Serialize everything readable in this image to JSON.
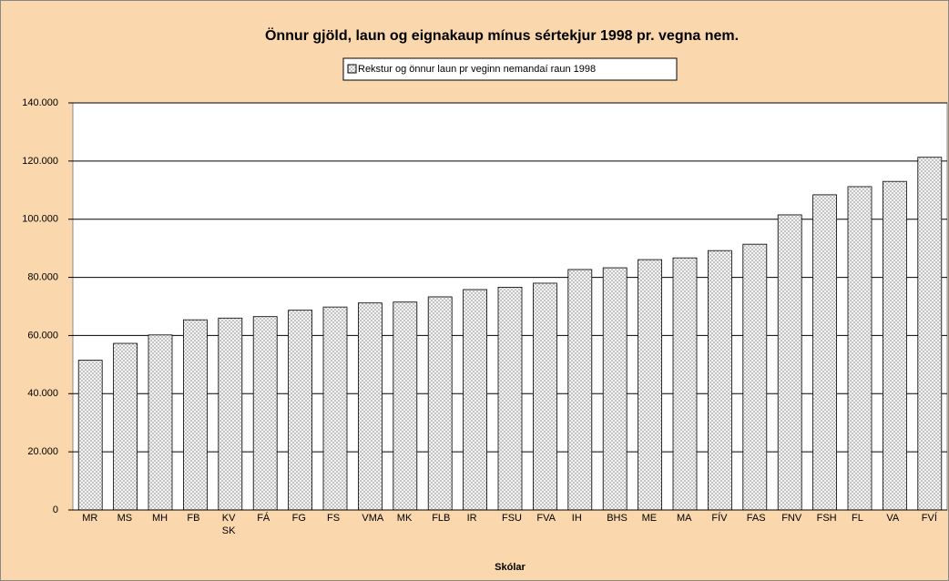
{
  "chart_data": {
    "type": "bar",
    "title": "Önnur gjöld, laun og eignakaup mínus sértekjur 1998 pr. vegna nem.",
    "x_label": "Skólar",
    "categories": [
      "MR",
      "MS",
      "MH",
      "FB",
      "KVSK",
      "FÁ",
      "FG",
      "FS",
      "VMA",
      "MK",
      "FLB",
      "IR",
      "FSU",
      "FVA",
      "IH",
      "BHS",
      "ME",
      "MA",
      "FÍV",
      "FAS",
      "FNV",
      "FSH",
      "FL",
      "VA",
      "FVÍ"
    ],
    "series": [
      {
        "name": "Rekstur og önnur laun pr veginn nemandaí raun 1998",
        "color": "#b8b8b8",
        "values": [
          51500,
          57300,
          60200,
          65400,
          66000,
          66500,
          68700,
          69800,
          71200,
          71500,
          73300,
          75800,
          76600,
          78000,
          82700,
          83300,
          86100,
          86700,
          89200,
          91400,
          101500,
          108400,
          111200,
          113000,
          121300
        ]
      }
    ],
    "ylim": [
      0,
      140000
    ],
    "yticks": [
      0,
      {
        "value": 20000,
        "label": "20.000"
      },
      {
        "value": 40000,
        "label": "40.000"
      },
      {
        "value": 60000,
        "label": "60.000"
      },
      {
        "value": 80000,
        "label": "80.000"
      },
      {
        "value": 100000,
        "label": "100.000"
      },
      {
        "value": 120000,
        "label": "120.000"
      },
      {
        "value": 140000,
        "label": "140.000"
      }
    ],
    "grid": true,
    "legend": "top"
  }
}
